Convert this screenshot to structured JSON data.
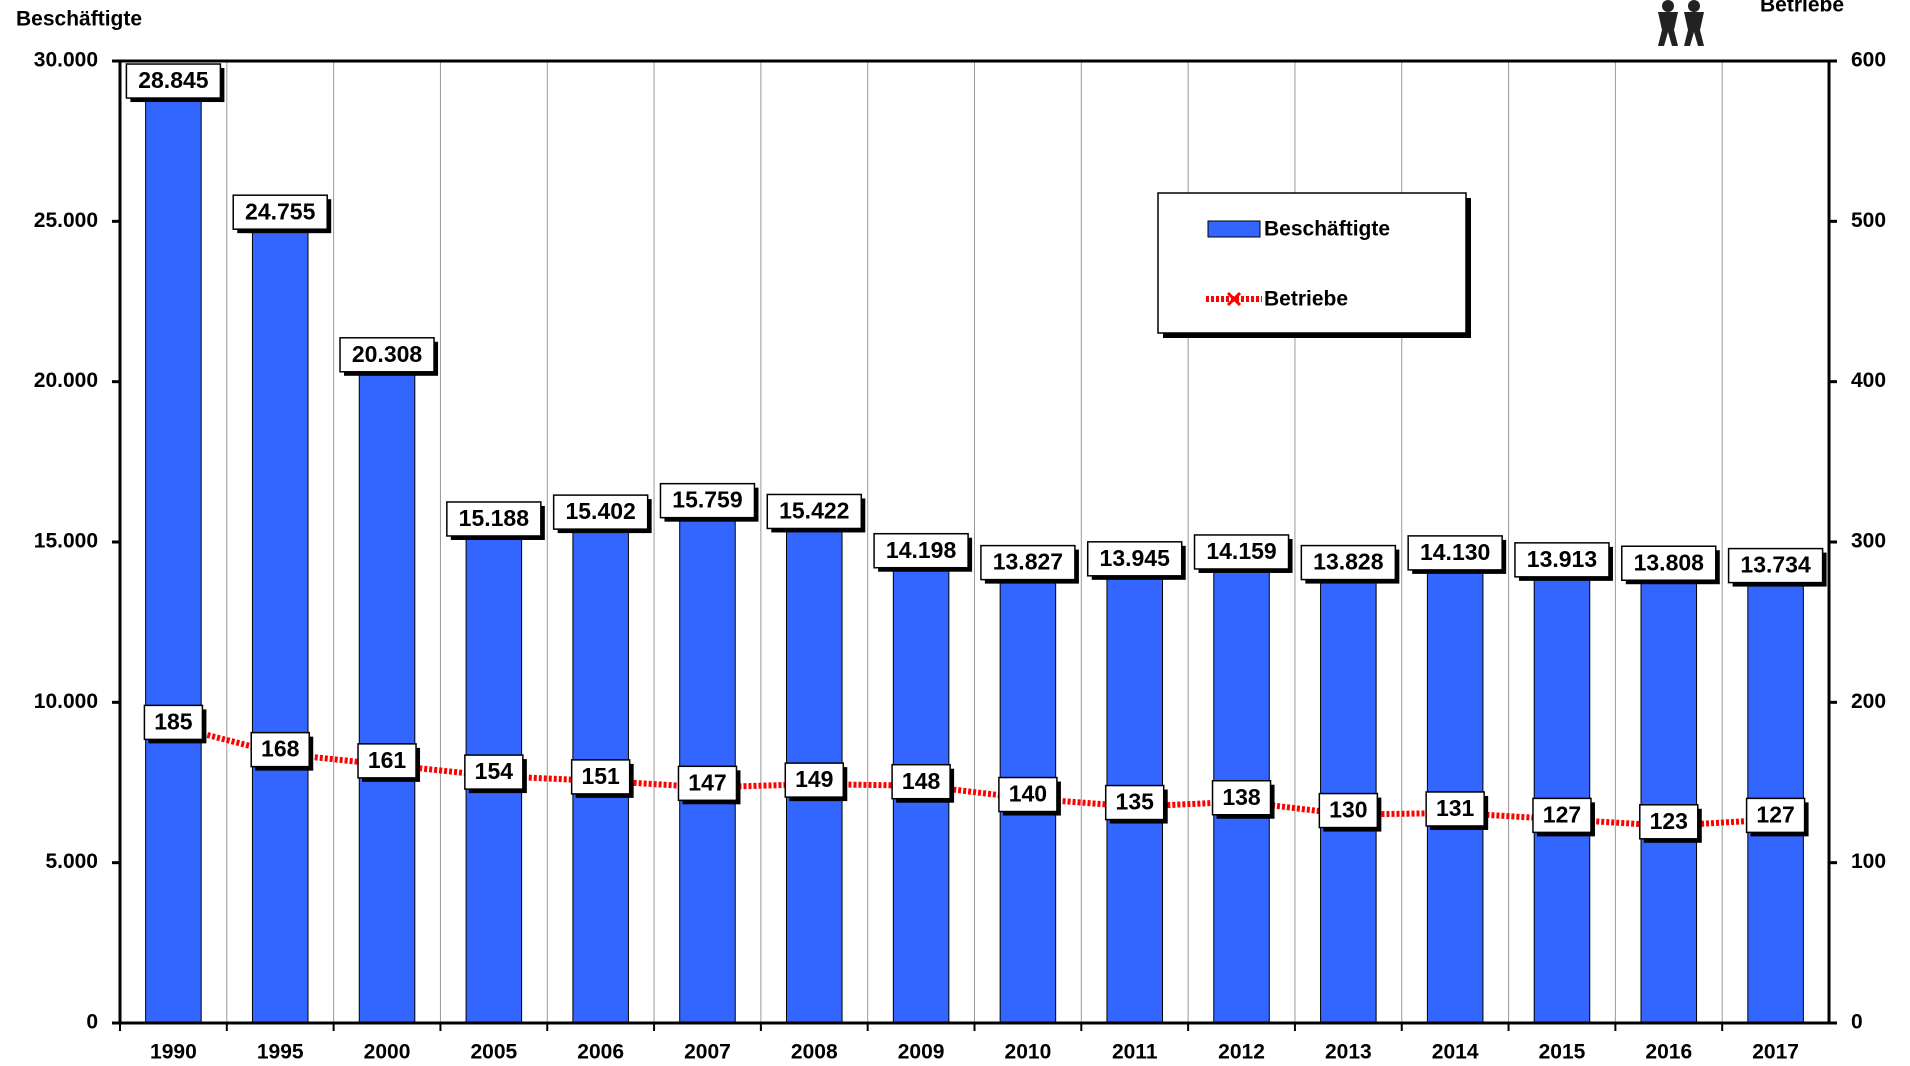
{
  "chart_data": {
    "type": "bar",
    "y_axis_label": "Beschäftigte",
    "y2_axis_label": "Betriebe",
    "categories": [
      "1990",
      "1995",
      "2000",
      "2005",
      "2006",
      "2007",
      "2008",
      "2009",
      "2010",
      "2011",
      "2012",
      "2013",
      "2014",
      "2015",
      "2016",
      "2017"
    ],
    "series": [
      {
        "name": "Beschäftigte",
        "type": "bar",
        "color": "#3366ff",
        "values": [
          28845,
          24755,
          20308,
          15188,
          15402,
          15759,
          15422,
          14198,
          13827,
          13945,
          14159,
          13828,
          14130,
          13913,
          13808,
          13734
        ],
        "value_labels": [
          "28.845",
          "24.755",
          "20.308",
          "15.188",
          "15.402",
          "15.759",
          "15.422",
          "14.198",
          "13.827",
          "13.945",
          "14.159",
          "13.828",
          "14.130",
          "13.913",
          "13.808",
          "13.734"
        ]
      },
      {
        "name": "Betriebe",
        "type": "line",
        "axis": "y2",
        "color": "#ff0000",
        "values": [
          185,
          168,
          161,
          154,
          151,
          147,
          149,
          148,
          140,
          135,
          138,
          130,
          131,
          127,
          123,
          127
        ]
      }
    ],
    "ylim": [
      0,
      30000
    ],
    "yticks": [
      0,
      {
        "value": 5000,
        "label": "5.000"
      },
      {
        "value": 10000,
        "label": "10.000"
      },
      {
        "value": 15000,
        "label": "15.000"
      },
      {
        "value": 20000,
        "label": "20.000"
      },
      {
        "value": 25000,
        "label": "25.000"
      },
      {
        "value": 30000,
        "label": "30.000"
      }
    ],
    "y2lim": [
      0,
      600
    ],
    "y2ticks": [
      0,
      100,
      200,
      300,
      400,
      500,
      600
    ],
    "grid": "x"
  }
}
